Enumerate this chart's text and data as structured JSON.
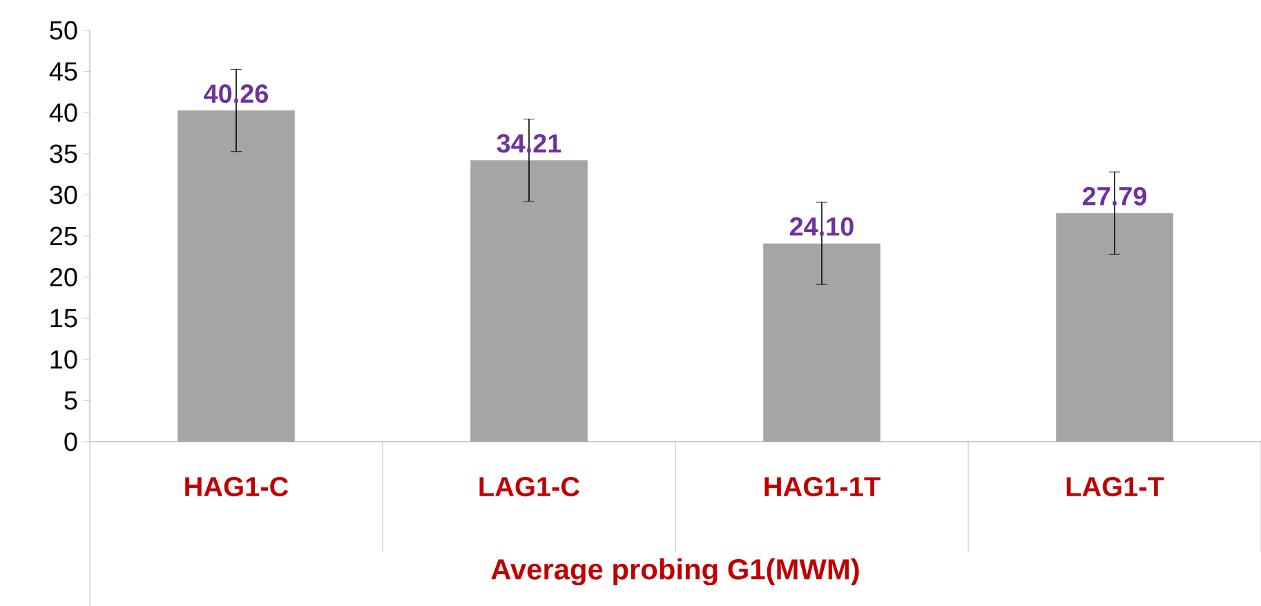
{
  "chart_data": {
    "type": "bar",
    "xlabel": "Average probing  G1(MWM)",
    "categories": [
      "HAG1-C",
      "LAG1-C",
      "HAG1-1T",
      "LAG1-T"
    ],
    "values": [
      40.26,
      34.21,
      24.1,
      27.79
    ],
    "errors": [
      5,
      5,
      5,
      5
    ],
    "color": "#a5a5a5",
    "value_labels": [
      "40.26",
      "34.21",
      "24.10",
      "27.79"
    ],
    "ylim": [
      0,
      50
    ],
    "yticks": [
      0,
      5,
      10,
      15,
      20,
      25,
      30,
      35,
      40,
      45,
      50
    ],
    "grid": false
  }
}
